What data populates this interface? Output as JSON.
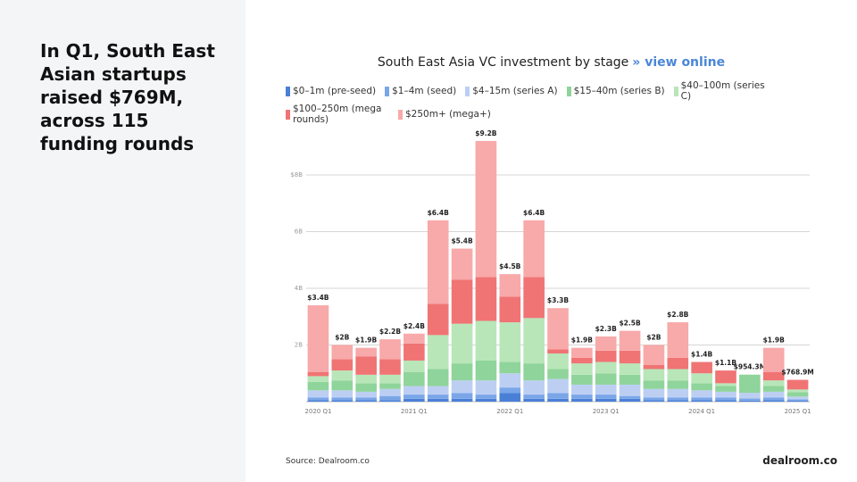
{
  "headline": "In Q1, South East Asian startups raised $769M, across 115 funding rounds",
  "chart_data": {
    "type": "stacked-bar",
    "title": "South East Asia VC investment by stage",
    "link": "» view online",
    "categories": [
      "2020 Q1",
      null,
      null,
      null,
      "2021 Q1",
      null,
      null,
      null,
      "2022 Q1",
      null,
      null,
      null,
      "2023 Q1",
      null,
      null,
      null,
      "2024 Q1",
      null,
      null,
      null,
      "2025 Q1"
    ],
    "series": [
      {
        "name": "$0–1m (pre-seed)",
        "color": "#4a7fd6",
        "values": [
          0.05,
          0.05,
          0.05,
          0.05,
          0.1,
          0.1,
          0.1,
          0.1,
          0.3,
          0.1,
          0.1,
          0.1,
          0.1,
          0.1,
          0.05,
          0.05,
          0.05,
          0.05,
          0.034,
          0.05,
          0.03
        ]
      },
      {
        "name": "$1–4m (seed)",
        "color": "#7aa6e8",
        "values": [
          0.1,
          0.1,
          0.1,
          0.15,
          0.15,
          0.15,
          0.2,
          0.15,
          0.2,
          0.15,
          0.2,
          0.15,
          0.15,
          0.1,
          0.1,
          0.1,
          0.1,
          0.1,
          0.08,
          0.1,
          0.05
        ]
      },
      {
        "name": "$4–15m (series A)",
        "color": "#bccff3",
        "values": [
          0.25,
          0.25,
          0.2,
          0.25,
          0.3,
          0.3,
          0.45,
          0.5,
          0.5,
          0.5,
          0.5,
          0.35,
          0.35,
          0.4,
          0.3,
          0.3,
          0.25,
          0.2,
          0.2,
          0.2,
          0.1
        ]
      },
      {
        "name": "$15–40m (series B)",
        "color": "#8fd49a",
        "values": [
          0.3,
          0.35,
          0.3,
          0.2,
          0.5,
          0.6,
          0.6,
          0.7,
          0.4,
          0.6,
          0.35,
          0.35,
          0.4,
          0.35,
          0.3,
          0.3,
          0.25,
          0.2,
          0.64,
          0.2,
          0.15
        ]
      },
      {
        "name": "$40–100m (series C)",
        "color": "#b8e6b8",
        "values": [
          0.2,
          0.35,
          0.3,
          0.3,
          0.4,
          1.2,
          1.4,
          1.4,
          1.4,
          1.6,
          0.55,
          0.4,
          0.4,
          0.4,
          0.4,
          0.4,
          0.35,
          0.1,
          0,
          0.2,
          0.1
        ]
      },
      {
        "name": "$100–250m (mega rounds)",
        "color": "#f07474",
        "values": [
          0.15,
          0.4,
          0.65,
          0.55,
          0.6,
          1.1,
          1.55,
          1.55,
          0.9,
          1.45,
          0.15,
          0.2,
          0.4,
          0.45,
          0.15,
          0.4,
          0.4,
          0.45,
          0,
          0.3,
          0.34
        ]
      },
      {
        "name": "$250m+ (mega+)",
        "color": "#f8a9a9",
        "values": [
          2.35,
          0.5,
          0.3,
          0.7,
          0.35,
          2.95,
          1.1,
          4.8,
          0.8,
          2.0,
          1.45,
          0.35,
          0.5,
          0.7,
          0.7,
          1.25,
          0,
          0,
          0,
          0.85,
          0
        ]
      }
    ],
    "totals": {
      "values": [
        3.4,
        2,
        1.9,
        2.2,
        2.4,
        6.4,
        5.4,
        9.2,
        4.5,
        6.4,
        3.3,
        1.9,
        2.3,
        2.5,
        2,
        2.8,
        1.4,
        1.1,
        0.9543,
        1.9,
        0.7689
      ],
      "value_labels": [
        "$3.4B",
        "$2B",
        "$1.9B",
        "$2.2B",
        "$2.4B",
        "$6.4B",
        "$5.4B",
        "$9.2B",
        "$4.5B",
        "$6.4B",
        "$3.3B",
        "$1.9B",
        "$2.3B",
        "$2.5B",
        "$2B",
        "$2.8B",
        "$1.4B",
        "$1.1B",
        "$954.3M",
        "$1.9B",
        "$768.9M"
      ]
    },
    "ylim": [
      0,
      9.7
    ],
    "yticks": [
      {
        "value": 2,
        "label": "2B"
      },
      {
        "value": 4,
        "label": "4B"
      },
      {
        "value": 6,
        "label": "6B"
      },
      {
        "value": 8,
        "label": "$8B"
      }
    ],
    "grid": true
  },
  "source": "Source:  Dealroom.co",
  "brand": "dealroom.co"
}
